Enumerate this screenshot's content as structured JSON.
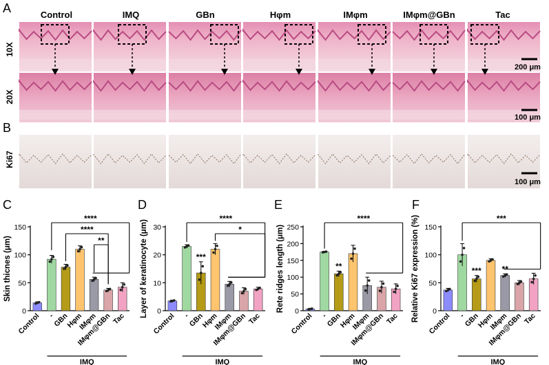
{
  "histology": {
    "panel_a_letter": "A",
    "panel_b_letter": "B",
    "groups": [
      "Control",
      "IMQ",
      "GBn",
      "Hφm",
      "IMφm",
      "IMφm@GBn",
      "Tac"
    ],
    "row_labels": [
      "10X",
      "20X",
      "Ki67"
    ],
    "scale_bars": [
      "200 μm",
      "100 μm",
      "100 μm"
    ]
  },
  "colors": {
    "he_pink": "#e7a3bf",
    "ki67_bg": "#ece4e3",
    "bar_colors": [
      "#8c8cff",
      "#9fd9a1",
      "#b59b17",
      "#ffc46e",
      "#9a9aa6",
      "#d9a5a8",
      "#f2a3c3"
    ]
  },
  "chart_data": [
    {
      "type": "bar",
      "panel": "C",
      "ylabel": "Skin thicnes (μm)",
      "group_label": "IMQ",
      "categories": [
        "Control",
        "-",
        "GBn",
        "Hφm",
        "IMφm",
        "IMφm@GBn",
        "Tac"
      ],
      "values": [
        14,
        92,
        78,
        110,
        56,
        37,
        42
      ],
      "errors": [
        2,
        7,
        5,
        6,
        4,
        3,
        8
      ],
      "ylim": [
        0,
        150
      ],
      "yticks": [
        0,
        50,
        100,
        150
      ],
      "brackets": [
        {
          "label": "****",
          "from": 1,
          "to": [
            4,
            6
          ]
        },
        {
          "label": "****",
          "from": 2,
          "to": [
            5,
            5
          ]
        },
        {
          "label": "**",
          "from": 4,
          "to": [
            5,
            5
          ]
        }
      ],
      "annotations": []
    },
    {
      "type": "bar",
      "panel": "D",
      "ylabel": "Layer of keratinocyte (μm)",
      "group_label": "IMQ",
      "categories": [
        "Control",
        "-",
        "GBn",
        "Hφm",
        "IMφm",
        "IMφm@GBn",
        "Tac"
      ],
      "values": [
        3.5,
        23,
        13.5,
        22,
        9.5,
        7,
        7.8
      ],
      "errors": [
        0.3,
        0.6,
        4,
        2,
        1,
        1.2,
        0.6
      ],
      "ylim": [
        0,
        30
      ],
      "yticks": [
        0,
        10,
        20,
        30
      ],
      "brackets": [
        {
          "label": "****",
          "from": 1,
          "to": [
            4,
            6
          ]
        },
        {
          "label": "*",
          "from": 3,
          "to": [
            4,
            6
          ]
        }
      ],
      "annotations": [
        {
          "label": "***",
          "index": 2
        }
      ]
    },
    {
      "type": "bar",
      "panel": "E",
      "ylabel": "Rete ridges  length (μm)",
      "group_label": "IMQ",
      "categories": [
        "Control",
        "-",
        "GBn",
        "Hφm",
        "IMφm",
        "IMφm@GBn",
        "Tac"
      ],
      "values": [
        5,
        175,
        110,
        170,
        75,
        70,
        65
      ],
      "errors": [
        2,
        2,
        8,
        25,
        25,
        18,
        15
      ],
      "ylim": [
        0,
        250
      ],
      "yticks": [
        0,
        50,
        100,
        150,
        200,
        250
      ],
      "brackets": [
        {
          "label": "****",
          "from": 1,
          "to": [
            4,
            6
          ]
        }
      ],
      "annotations": [
        {
          "label": "**",
          "index": 2
        }
      ]
    },
    {
      "type": "bar",
      "panel": "F",
      "ylabel": "Relative Ki67 expression (%)",
      "group_label": "IMQ",
      "categories": [
        "Control",
        "-",
        "GBn",
        "Hφm",
        "IMφm",
        "IMφm@GBn",
        "Tac"
      ],
      "values": [
        37,
        100,
        57,
        90,
        63,
        50,
        57
      ],
      "errors": [
        3,
        20,
        6,
        3,
        3,
        4,
        10
      ],
      "ylim": [
        0,
        150
      ],
      "yticks": [
        0,
        50,
        100,
        150
      ],
      "brackets": [
        {
          "label": "***",
          "from": 1,
          "to": [
            4,
            6
          ]
        }
      ],
      "annotations": [
        {
          "label": "***",
          "index": 2
        },
        {
          "label": "**",
          "index": 4
        }
      ]
    }
  ]
}
